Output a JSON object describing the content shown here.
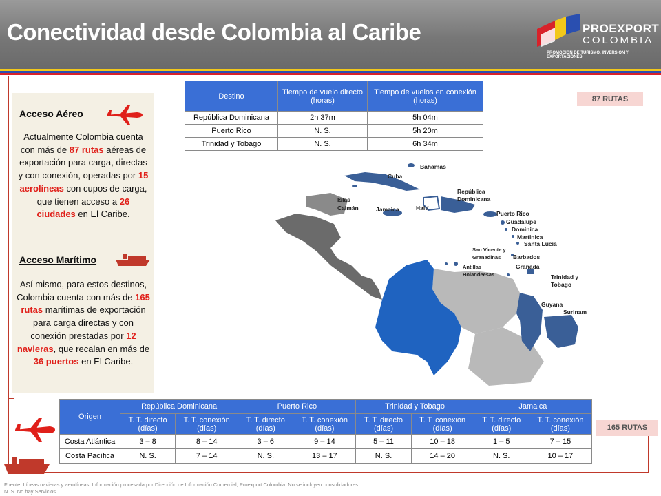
{
  "header": {
    "title": "Conectividad desde Colombia  al Caribe",
    "logo_name": "PROEXPORT",
    "logo_sub": "COLOMBIA",
    "logo_tagline": "PROMOCIÓN DE TURISMO, INVERSIÓN Y EXPORTACIONES"
  },
  "colors": {
    "accent_red": "#e0201a",
    "table_header": "#3a6fd6",
    "colombia": "#1f63c0",
    "caribbean": "#3a5f97",
    "neighbors": "#b9b9b9",
    "dark_countries": "#6b6b6b"
  },
  "air": {
    "title": "Acceso Aéreo",
    "p1": "Actualmente Colombia cuenta con más de ",
    "n1": "87 rutas",
    "p2": " aéreas de exportación para carga, directas y con conexión, operadas por ",
    "n2": "15 aerolíneas",
    "p3": " con cupos de carga, que tienen acceso a ",
    "n3": "26 ciudades",
    "p4": " en El Caribe."
  },
  "sea": {
    "title": "Acceso Marítimo",
    "p1": "Así mismo, para estos destinos,  Colombia cuenta con más de ",
    "n1": "165 rutas",
    "p2": " marítimas de exportación para carga directas y con conexión prestadas por ",
    "n2": "12 navieras",
    "p3": ", que recalan en más de ",
    "n3": "36 puertos",
    "p4": " en El Caribe."
  },
  "badges": {
    "air": "87 RUTAS",
    "sea": "165 RUTAS"
  },
  "air_table": {
    "headers": [
      "Destino",
      "Tiempo  de vuelo directo (horas)",
      "Tiempo de vuelos en conexión (horas)"
    ],
    "rows": [
      [
        "República Dominicana",
        "2h 37m",
        "5h 04m"
      ],
      [
        "Puerto Rico",
        "N. S.",
        "5h 20m"
      ],
      [
        "Trinidad y Tobago",
        "N. S.",
        "6h 34m"
      ]
    ]
  },
  "sea_table": {
    "origin_label": "Origen",
    "groups": [
      "República Dominicana",
      "Puerto Rico",
      "Trinidad y Tobago",
      "Jamaica"
    ],
    "direct_label": "T. T. directo (días)",
    "conn_label": "T. T. conexión (días)",
    "rows": [
      {
        "origin": "Costa Atlántica",
        "values": [
          "3 – 8",
          "8 – 14",
          "3 – 6",
          "9 – 14",
          "5 – 11",
          "10 – 18",
          "1 – 5",
          "7 – 15"
        ]
      },
      {
        "origin": "Costa Pacífica",
        "values": [
          "N. S.",
          "7 – 14",
          "N. S.",
          "13 – 17",
          "N. S.",
          "14 – 20",
          "N. S.",
          "10 – 17"
        ]
      }
    ]
  },
  "map_labels": {
    "bahamas": "Bahamas",
    "cuba": "Cuba",
    "islas": "Islas",
    "caiman": "Caimán",
    "jamaica": "Jamaica",
    "haiti": "Haití",
    "rep1": "República",
    "rep2": "Dominicana",
    "pr": "Puerto Rico",
    "guadalupe": "Guadalupe",
    "dominica": "Dominica",
    "martinica": "Martinica",
    "santalucia": "Santa Lucía",
    "sv1": "San Vicente y",
    "sv2": "Granadinas",
    "barbados": "Barbados",
    "ant1": "Antillas",
    "ant2": "Holandeesas",
    "granada": "Granada",
    "tt1": "Trinidad y",
    "tt2": "Tobago",
    "guyana": "Guyana",
    "surinam": "Surinam"
  },
  "footnote": {
    "line1": "Fuente:  Líneas navieras y aerolíneas.  Información procesada por Dirección de Información Comercial, Proexport Colombia. No se incluyen consolidadores.",
    "line2": "N. S. No hay Servicios"
  }
}
